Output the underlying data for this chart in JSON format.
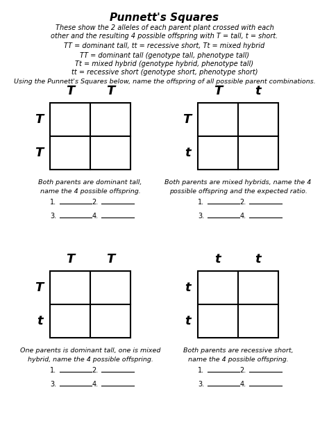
{
  "title": "Punnett's Squares",
  "subtitle1": "These show the 2 alleles of each parent plant crossed with each",
  "subtitle2": "other and the resulting 4 possible offspring with T = tall, t = short.",
  "line3": "TT = dominant tall, tt = recessive short, Tt = mixed hybrid",
  "line4": "TT = dominant tall (genotype tall, phenotype tall)",
  "line5": "Tt = mixed hybrid (genotype hybrid, phenotype tall)",
  "line6": "tt = recessive short (genotype short, phenotype short)",
  "instruction": "Using the Punnett's Squares below, name the offspring of all possible parent combinations.",
  "squares": [
    {
      "cols": [
        "T",
        "T"
      ],
      "rows": [
        "T",
        "T"
      ],
      "desc1": "Both parents are dominant tall,",
      "desc2": "name the 4 possible offspring."
    },
    {
      "cols": [
        "T",
        "t"
      ],
      "rows": [
        "T",
        "t"
      ],
      "desc1": "Both parents are mixed hybrids, name the 4",
      "desc2": "possible offspring and the expected ratio."
    },
    {
      "cols": [
        "T",
        "T"
      ],
      "rows": [
        "T",
        "t"
      ],
      "desc1": "One parents is dominant tall, one is mixed",
      "desc2": "hybrid, name the 4 possible offspring."
    },
    {
      "cols": [
        "t",
        "t"
      ],
      "rows": [
        "t",
        "t"
      ],
      "desc1": "Both parents are recessive short,",
      "desc2": "name the 4 possible offspring."
    }
  ],
  "bg_color": "#ffffff",
  "text_color": "#000000"
}
